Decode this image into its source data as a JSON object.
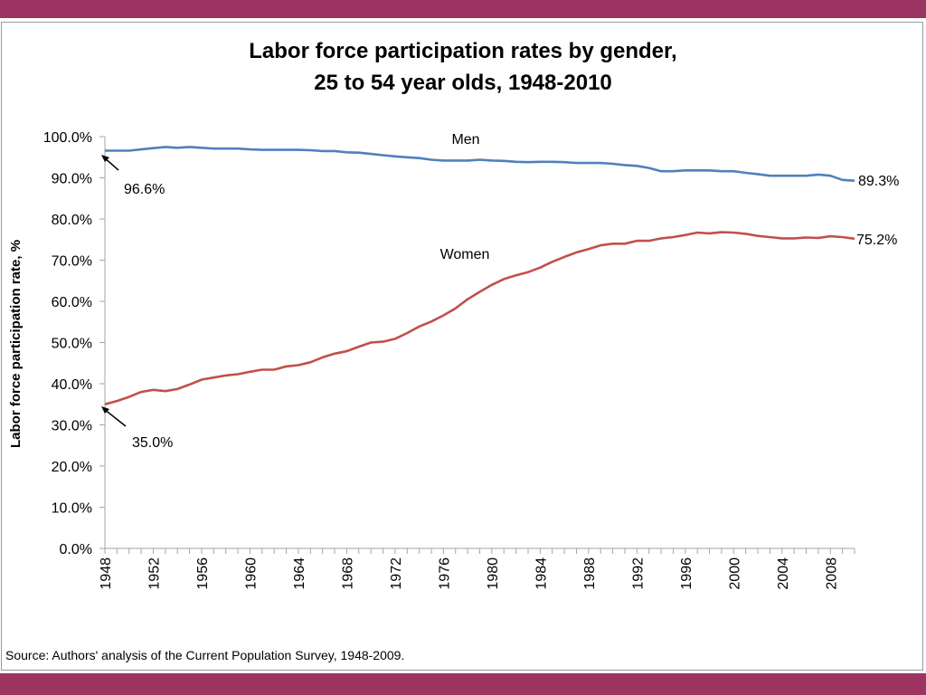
{
  "colors": {
    "band": "#9B3461",
    "men": "#4F81BD",
    "women": "#C0504D",
    "axis": "#a6a6a6"
  },
  "footer": {
    "source": "Source: Authors' analysis of the Current Population Survey, 1948-2009."
  },
  "chart_data": {
    "type": "line",
    "title": "Labor force participation rates by gender,",
    "subtitle": "25 to 54 year olds, 1948-2010",
    "xlabel": "",
    "ylabel": "Labor force participation rate, %",
    "xlim": [
      1948,
      2010
    ],
    "ylim": [
      0,
      100
    ],
    "y_ticks": [
      "0.0%",
      "10.0%",
      "20.0%",
      "30.0%",
      "40.0%",
      "50.0%",
      "60.0%",
      "70.0%",
      "80.0%",
      "90.0%",
      "100.0%"
    ],
    "x_ticks": [
      "1948",
      "1952",
      "1956",
      "1960",
      "1964",
      "1968",
      "1972",
      "1976",
      "1980",
      "1984",
      "1988",
      "1992",
      "1996",
      "2000",
      "2004",
      "2008"
    ],
    "grid": false,
    "legend": "none",
    "series": [
      {
        "name": "Men",
        "color": "#4F81BD",
        "x": [
          1948,
          1949,
          1950,
          1951,
          1952,
          1953,
          1954,
          1955,
          1956,
          1957,
          1958,
          1959,
          1960,
          1961,
          1962,
          1963,
          1964,
          1965,
          1966,
          1967,
          1968,
          1969,
          1970,
          1971,
          1972,
          1973,
          1974,
          1975,
          1976,
          1977,
          1978,
          1979,
          1980,
          1981,
          1982,
          1983,
          1984,
          1985,
          1986,
          1987,
          1988,
          1989,
          1990,
          1991,
          1992,
          1993,
          1994,
          1995,
          1996,
          1997,
          1998,
          1999,
          2000,
          2001,
          2002,
          2003,
          2004,
          2005,
          2006,
          2007,
          2008,
          2009,
          2010
        ],
        "values": [
          96.6,
          96.6,
          96.6,
          96.9,
          97.2,
          97.5,
          97.3,
          97.5,
          97.3,
          97.1,
          97.1,
          97.1,
          96.9,
          96.8,
          96.8,
          96.8,
          96.8,
          96.7,
          96.5,
          96.5,
          96.2,
          96.1,
          95.8,
          95.5,
          95.2,
          95.0,
          94.8,
          94.4,
          94.2,
          94.2,
          94.2,
          94.4,
          94.2,
          94.1,
          93.9,
          93.8,
          93.9,
          93.9,
          93.8,
          93.6,
          93.6,
          93.6,
          93.4,
          93.1,
          92.9,
          92.4,
          91.6,
          91.6,
          91.8,
          91.8,
          91.8,
          91.6,
          91.6,
          91.2,
          90.9,
          90.5,
          90.5,
          90.5,
          90.5,
          90.8,
          90.5,
          89.5,
          89.3
        ]
      },
      {
        "name": "Women",
        "color": "#C0504D",
        "x": [
          1948,
          1949,
          1950,
          1951,
          1952,
          1953,
          1954,
          1955,
          1956,
          1957,
          1958,
          1959,
          1960,
          1961,
          1962,
          1963,
          1964,
          1965,
          1966,
          1967,
          1968,
          1969,
          1970,
          1971,
          1972,
          1973,
          1974,
          1975,
          1976,
          1977,
          1978,
          1979,
          1980,
          1981,
          1982,
          1983,
          1984,
          1985,
          1986,
          1987,
          1988,
          1989,
          1990,
          1991,
          1992,
          1993,
          1994,
          1995,
          1996,
          1997,
          1998,
          1999,
          2000,
          2001,
          2002,
          2003,
          2004,
          2005,
          2006,
          2007,
          2008,
          2009,
          2010
        ],
        "values": [
          35.0,
          35.8,
          36.8,
          38.0,
          38.5,
          38.2,
          38.7,
          39.8,
          41.0,
          41.5,
          42.0,
          42.3,
          42.9,
          43.4,
          43.4,
          44.2,
          44.5,
          45.2,
          46.4,
          47.3,
          47.9,
          49.0,
          50.0,
          50.2,
          50.9,
          52.3,
          53.9,
          55.1,
          56.6,
          58.3,
          60.5,
          62.3,
          64.0,
          65.4,
          66.3,
          67.1,
          68.2,
          69.6,
          70.8,
          71.9,
          72.7,
          73.6,
          74.0,
          74.0,
          74.7,
          74.7,
          75.3,
          75.6,
          76.1,
          76.7,
          76.5,
          76.8,
          76.7,
          76.4,
          75.9,
          75.6,
          75.3,
          75.3,
          75.5,
          75.4,
          75.8,
          75.6,
          75.2
        ]
      }
    ],
    "annotations": [
      {
        "text": "Men"
      },
      {
        "text": "Women"
      },
      {
        "text": "96.6%"
      },
      {
        "text": "35.0%"
      },
      {
        "text": "89.3%"
      },
      {
        "text": "75.2%"
      }
    ]
  }
}
